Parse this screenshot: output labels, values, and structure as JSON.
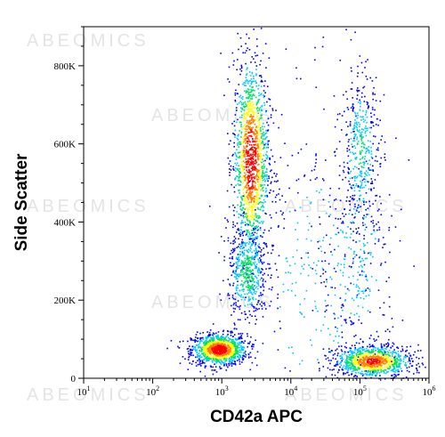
{
  "chart_data": {
    "type": "scatter",
    "title": "",
    "xlabel": "CD42a APC",
    "ylabel": "Side Scatter",
    "x_scale": "log",
    "x_range": [
      10,
      1000000
    ],
    "y_range": [
      0,
      900000
    ],
    "x_ticks": [
      {
        "value": 10,
        "base": "10",
        "exp": "1"
      },
      {
        "value": 100,
        "base": "10",
        "exp": "2"
      },
      {
        "value": 1000,
        "base": "10",
        "exp": "3"
      },
      {
        "value": 10000,
        "base": "10",
        "exp": "4"
      },
      {
        "value": 100000,
        "base": "10",
        "exp": "5"
      },
      {
        "value": 1000000,
        "base": "10",
        "exp": "6"
      }
    ],
    "y_ticks": [
      {
        "value": 0,
        "label": "0"
      },
      {
        "value": 200000,
        "label": "200K"
      },
      {
        "value": 400000,
        "label": "400K"
      },
      {
        "value": 600000,
        "label": "600K"
      },
      {
        "value": 800000,
        "label": "800K"
      }
    ],
    "grid": false,
    "legend": "none",
    "color_map": [
      "#0000ff",
      "#00c8ff",
      "#00e060",
      "#ffff00",
      "#ff8000",
      "#ff0000"
    ],
    "populations": [
      {
        "x_center": 900,
        "y_center": 75000,
        "x_spread_decades": 0.2,
        "y_spread": 20000,
        "weight": 0.22
      },
      {
        "x_center": 2600,
        "y_center": 560000,
        "x_spread_decades": 0.13,
        "y_spread": 130000,
        "weight": 0.28
      },
      {
        "x_center": 2300,
        "y_center": 270000,
        "x_spread_decades": 0.14,
        "y_spread": 60000,
        "weight": 0.1
      },
      {
        "x_center": 150000,
        "y_center": 45000,
        "x_spread_decades": 0.28,
        "y_spread": 20000,
        "weight": 0.2
      },
      {
        "x_center": 100000,
        "y_center": 580000,
        "x_spread_decades": 0.14,
        "y_spread": 110000,
        "weight": 0.08
      },
      {
        "x_center": 90000,
        "y_center": 300000,
        "x_spread_decades": 0.3,
        "y_spread": 150000,
        "weight": 0.06
      },
      {
        "x_center": 20000,
        "y_center": 250000,
        "x_spread_decades": 0.5,
        "y_spread": 250000,
        "weight": 0.06
      }
    ],
    "watermark": "ABEOMICS"
  }
}
